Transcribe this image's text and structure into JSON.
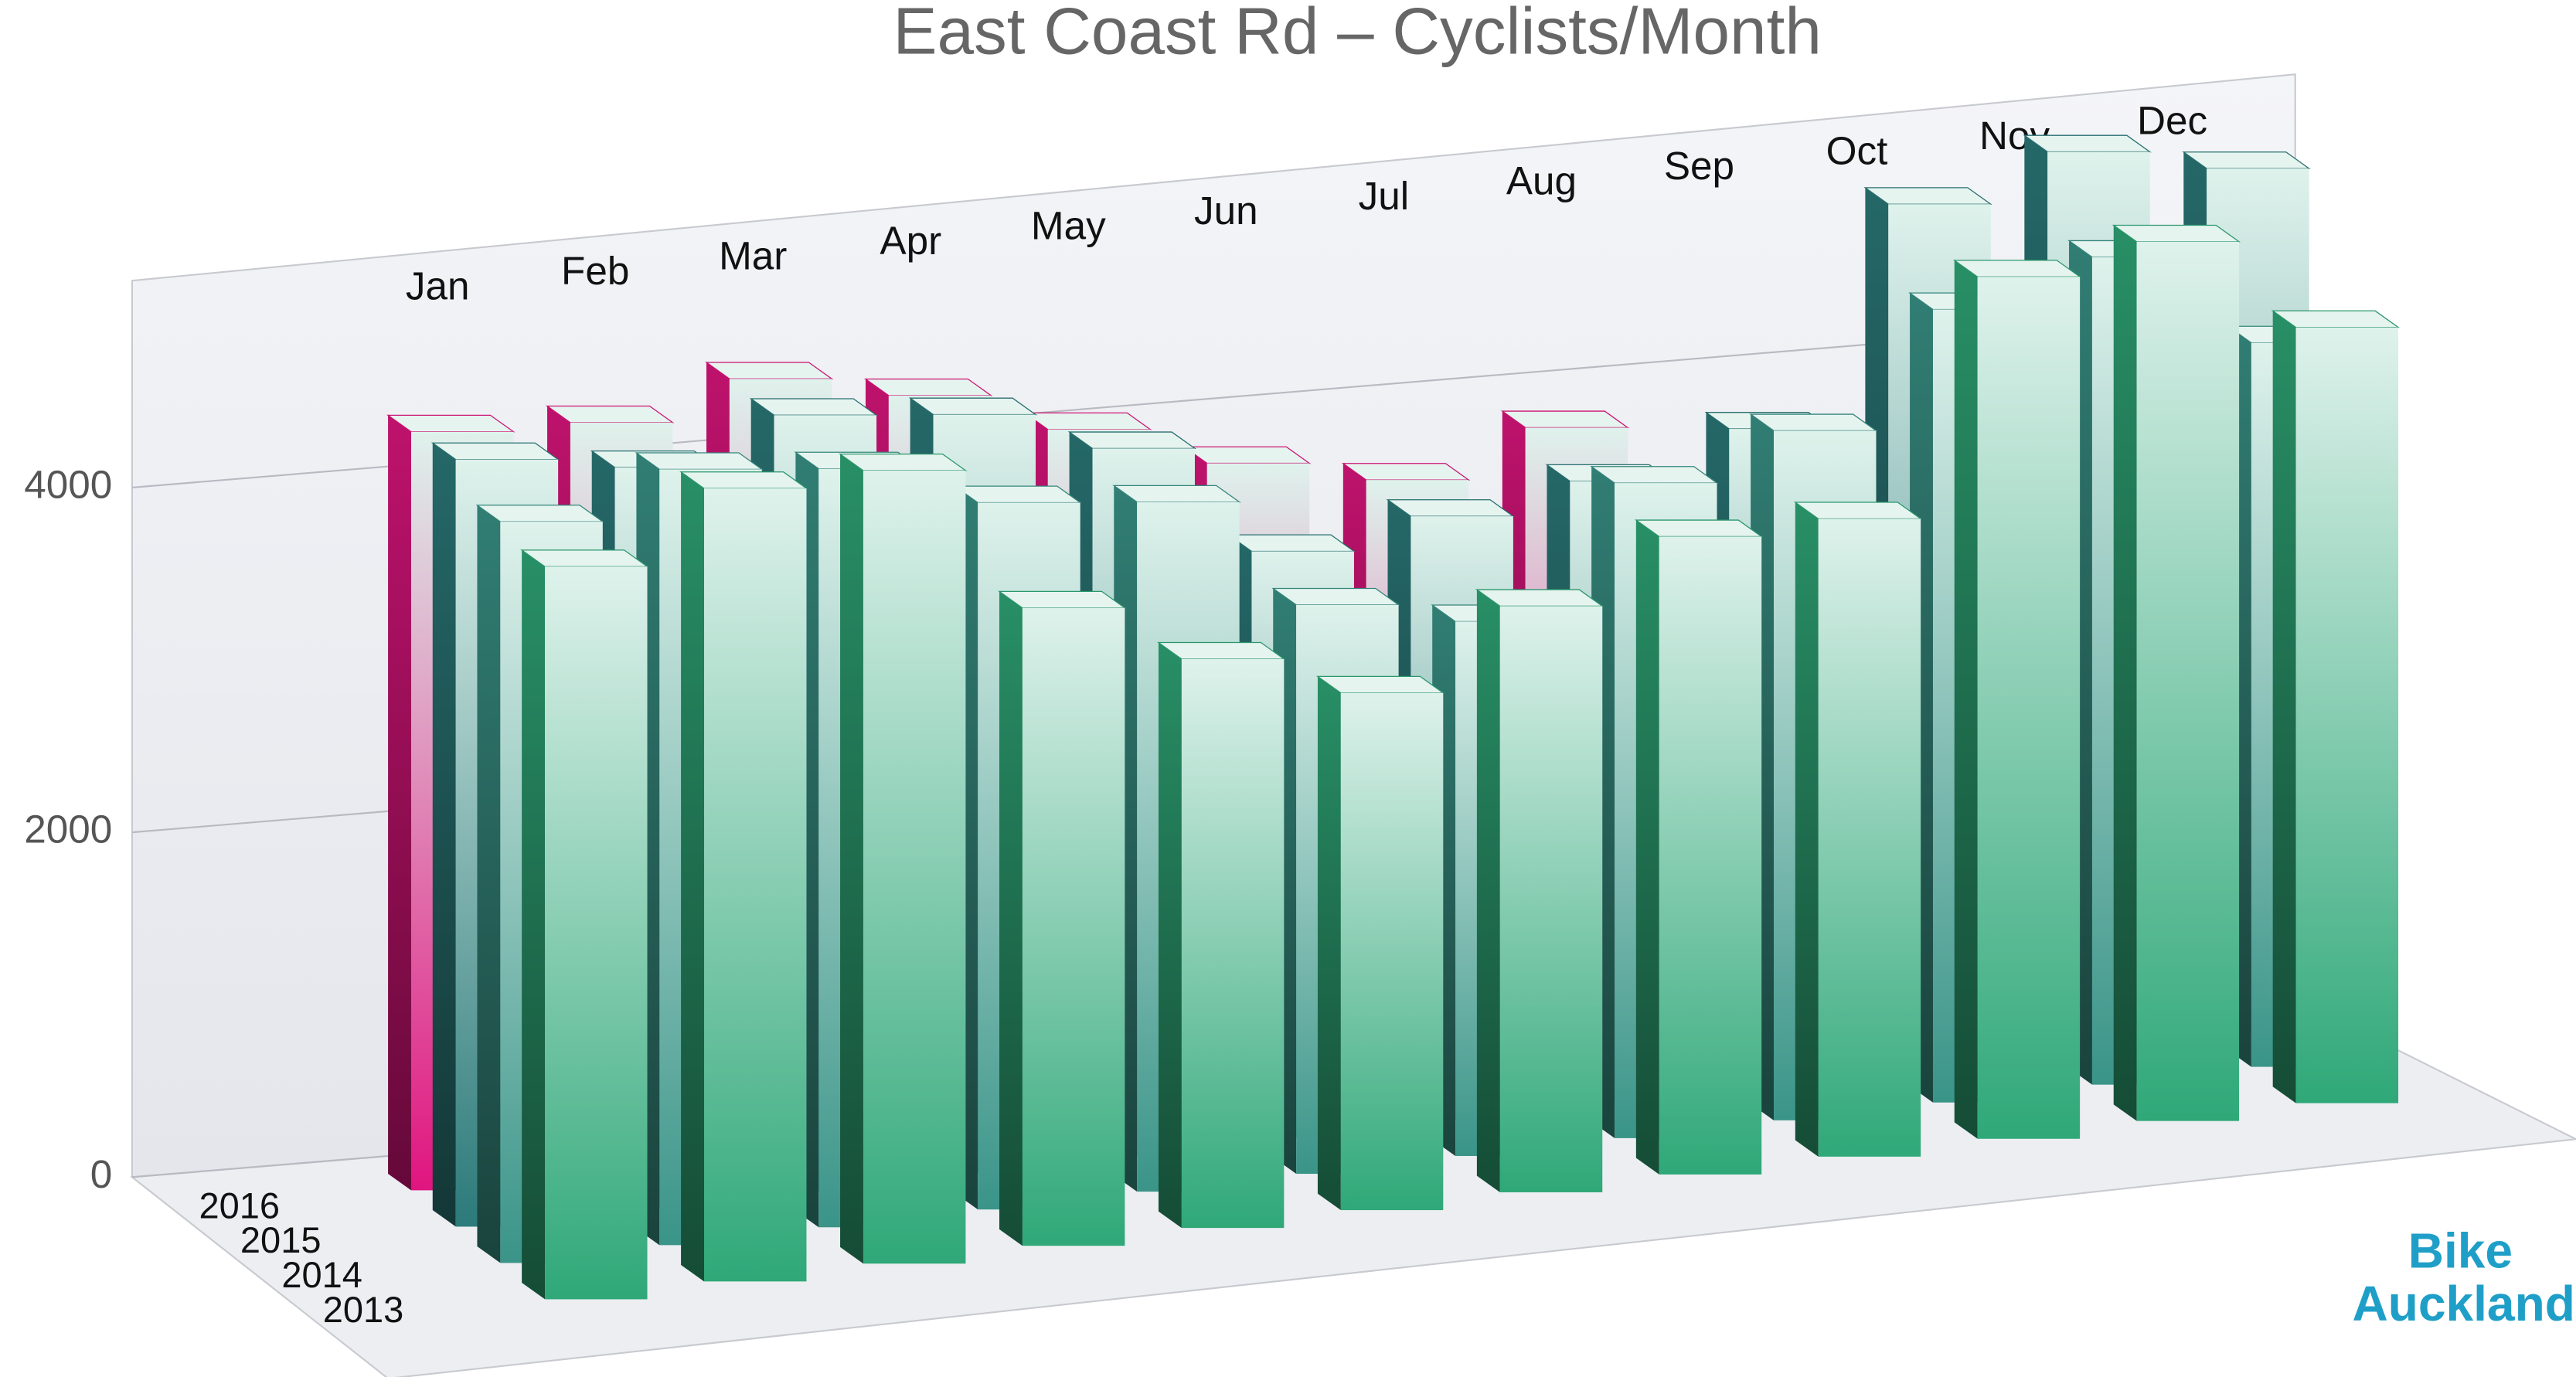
{
  "chart_data": {
    "type": "bar3d",
    "title": "East Coast Rd – Cyclists/Month",
    "categories": [
      "Jan",
      "Feb",
      "Mar",
      "Apr",
      "May",
      "Jun",
      "Jul",
      "Aug",
      "Sep",
      "Oct",
      "Nov",
      "Dec"
    ],
    "series": [
      {
        "name": "2013",
        "color": "#2fa878",
        "values": [
          4250,
          4600,
          4600,
          3700,
          3300,
          3000,
          3400,
          3700,
          3700,
          5000,
          5100,
          4500
        ]
      },
      {
        "name": "2014",
        "color": "#3a9488",
        "values": [
          4300,
          4500,
          4400,
          4100,
          4000,
          3300,
          3100,
          3800,
          4000,
          4600,
          4800,
          4200
        ]
      },
      {
        "name": "2015",
        "color": "#2c7a7a",
        "values": [
          4450,
          4300,
          4500,
          4400,
          4100,
          3400,
          3500,
          3600,
          3800,
          5000,
          5200,
          5000
        ]
      },
      {
        "name": "2016",
        "color": "#e0157f",
        "values": [
          4400,
          4350,
          4500,
          4300,
          4000,
          3700,
          3500,
          3700,
          null,
          null,
          null,
          null
        ]
      }
    ],
    "ylim": [
      0,
      5200
    ],
    "yticks": [
      0,
      2000,
      4000
    ],
    "grid": true,
    "logo": {
      "line1": "Bike",
      "line2": "Auckland"
    }
  }
}
